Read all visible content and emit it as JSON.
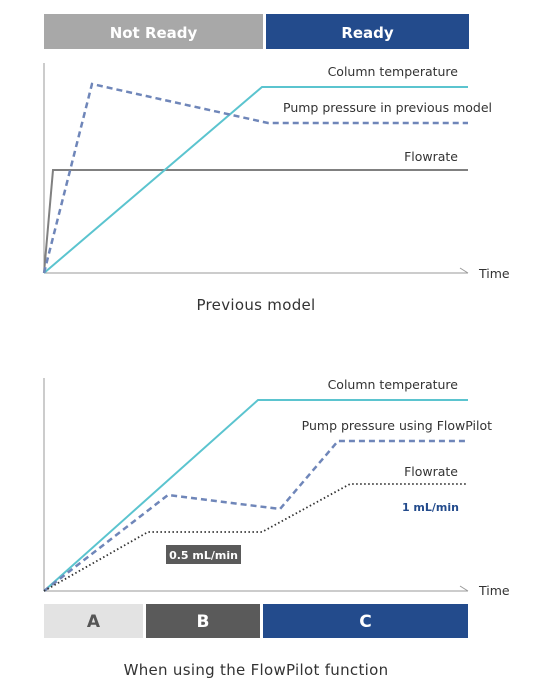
{
  "header": {
    "not_ready": "Not Ready",
    "ready": "Ready"
  },
  "top_chart": {
    "labels": {
      "column_temperature": "Column temperature",
      "pump_pressure": "Pump pressure in previous model",
      "flowrate": "Flowrate"
    },
    "x_axis": "Time",
    "caption": "Previous model"
  },
  "bottom_chart": {
    "labels": {
      "column_temperature": "Column temperature",
      "pump_pressure": "Pump pressure using FlowPilot",
      "flowrate": "Flowrate",
      "rate_high": "1 mL/min",
      "rate_low": "0.5 mL/min"
    },
    "x_axis": "Time",
    "caption": "When using the FlowPilot function"
  },
  "phases": {
    "a": "A",
    "b": "B",
    "c": "C"
  },
  "colors": {
    "not_ready": "#a8a8a8",
    "ready": "#234b8c",
    "column_temperature": "#5bc4cf",
    "pump_pressure": "#6f86b9",
    "flowrate": "#808080",
    "phase_a": "#e3e3e3",
    "phase_b": "#5a5a5a",
    "phase_c": "#234b8c"
  }
}
